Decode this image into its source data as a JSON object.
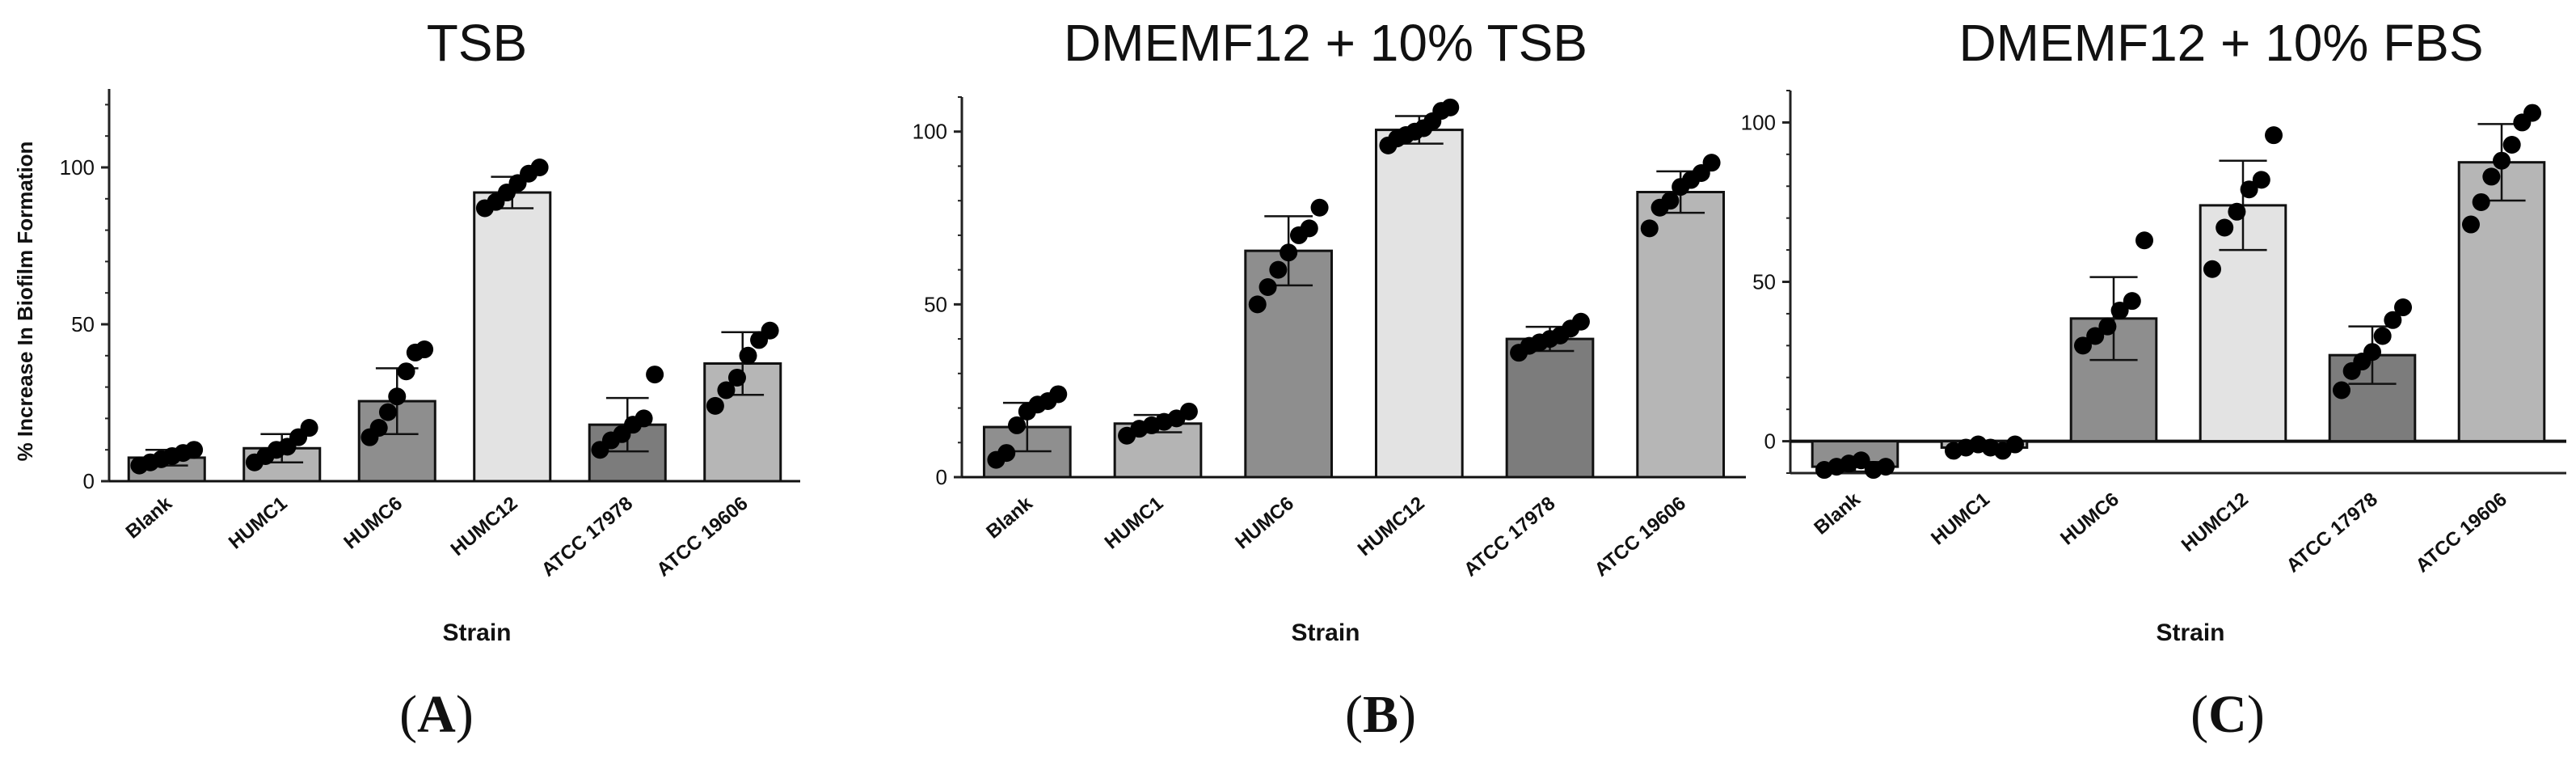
{
  "chart_data": [
    {
      "type": "bar",
      "panel": "A",
      "title": "TSB",
      "xlabel": "Strain",
      "ylabel": "% Increase In Biofilm Formation",
      "ylim": [
        0,
        125
      ],
      "yticks": [
        0,
        50,
        100
      ],
      "categories": [
        "Blank",
        "HUMC1",
        "HUMC6",
        "HUMC12",
        "ATCC 17978",
        "ATCC 19606"
      ],
      "values": [
        7.5,
        10.5,
        25.5,
        92,
        18,
        37.5
      ],
      "error": [
        2.5,
        4.5,
        10.5,
        5,
        8.5,
        10
      ],
      "bar_colors": [
        "#9b9b9b",
        "#b4b4b4",
        "#8e8e8e",
        "#e3e3e3",
        "#7c7c7c",
        "#b6b6b6"
      ],
      "points": [
        [
          5,
          6,
          7,
          8,
          9,
          10
        ],
        [
          6,
          8,
          10,
          11,
          14,
          17
        ],
        [
          14,
          17,
          22,
          27,
          35,
          41,
          42
        ],
        [
          87,
          89,
          92,
          95,
          98,
          100
        ],
        [
          10,
          13,
          15,
          18,
          20,
          34
        ],
        [
          24,
          29,
          33,
          40,
          45,
          48
        ]
      ]
    },
    {
      "type": "bar",
      "panel": "B",
      "title": "DMEMF12 + 10% TSB",
      "xlabel": "Strain",
      "ylabel": "",
      "ylim": [
        0,
        110
      ],
      "yticks": [
        0,
        50,
        100
      ],
      "categories": [
        "Blank",
        "HUMC1",
        "HUMC6",
        "HUMC12",
        "ATCC 17978",
        "ATCC 19606"
      ],
      "values": [
        14.5,
        15.5,
        65.5,
        100.5,
        40,
        82.5
      ],
      "error": [
        7,
        2.5,
        10,
        4,
        3.5,
        6
      ],
      "bar_colors": [
        "#8f8f8f",
        "#b4b4b4",
        "#8e8e8e",
        "#e3e3e3",
        "#7c7c7c",
        "#b6b6b6"
      ],
      "points": [
        [
          5,
          7,
          15,
          19,
          21,
          22,
          24
        ],
        [
          12,
          14,
          15,
          16,
          17,
          19
        ],
        [
          50,
          55,
          60,
          65,
          70,
          72,
          78
        ],
        [
          96,
          98,
          99,
          100,
          101,
          103,
          106,
          107
        ],
        [
          36,
          38,
          39,
          40,
          41,
          43,
          45
        ],
        [
          72,
          78,
          80,
          84,
          86,
          88,
          91
        ]
      ]
    },
    {
      "type": "bar",
      "panel": "C",
      "title": "DMEMF12 + 10% FBS",
      "xlabel": "Strain",
      "ylabel": "",
      "ylim": [
        -10,
        110
      ],
      "yticks": [
        0,
        50,
        100
      ],
      "categories": [
        "Blank",
        "HUMC1",
        "HUMC6",
        "HUMC12",
        "ATCC 17978",
        "ATCC 19606"
      ],
      "values": [
        -8,
        -2,
        38.5,
        74,
        27,
        87.5
      ],
      "error": [
        1.5,
        1,
        13,
        14,
        9,
        12
      ],
      "bar_colors": [
        "#8f8f8f",
        "#b4b4b4",
        "#8e8e8e",
        "#e3e3e3",
        "#7c7c7c",
        "#b6b6b6"
      ],
      "points": [
        [
          -9,
          -8,
          -7,
          -6,
          -9,
          -8
        ],
        [
          -3,
          -2,
          -1,
          -2,
          -3,
          -1
        ],
        [
          30,
          33,
          36,
          41,
          44,
          63
        ],
        [
          54,
          67,
          72,
          79,
          82,
          96
        ],
        [
          16,
          22,
          25,
          28,
          33,
          38,
          42
        ],
        [
          68,
          75,
          83,
          88,
          93,
          100,
          103
        ]
      ]
    }
  ],
  "panel_labels": [
    "A",
    "B",
    "C"
  ]
}
